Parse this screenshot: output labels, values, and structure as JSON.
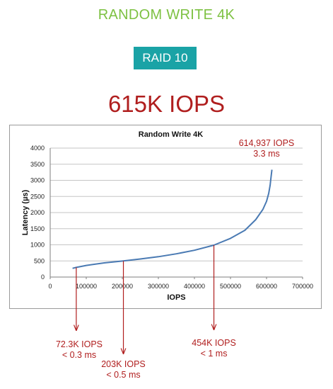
{
  "header": {
    "title": "RANDOM WRITE 4K",
    "badge": "RAID 10",
    "headline": "615K IOPS"
  },
  "colors": {
    "title_green": "#7dc142",
    "badge_teal": "#1aa3a6",
    "accent_red": "#b01e1e",
    "series_blue": "#4a7ab3",
    "grid": "#c6c6c6"
  },
  "chart_data": {
    "type": "line",
    "title": "Random Write 4K",
    "xlabel": "IOPS",
    "ylabel": "Latency (µs)",
    "xlim": [
      0,
      700000
    ],
    "ylim": [
      0,
      4000
    ],
    "x_ticks": [
      "0",
      "100000",
      "200000",
      "300000",
      "400000",
      "500000",
      "600000",
      "700000"
    ],
    "y_ticks": [
      "0",
      "500",
      "1000",
      "1500",
      "2000",
      "2500",
      "3000",
      "3500",
      "4000"
    ],
    "grid": "horizontal",
    "series": [
      {
        "x": [
          62000,
          72300,
          100000,
          150000,
          203000,
          250000,
          300000,
          350000,
          400000,
          454000,
          500000,
          540000,
          570000,
          590000,
          600000,
          606000,
          610000,
          612000,
          613500,
          614937
        ],
        "y": [
          270,
          300,
          360,
          440,
          500,
          560,
          630,
          720,
          830,
          990,
          1200,
          1450,
          1780,
          2100,
          2350,
          2600,
          2850,
          3050,
          3200,
          3330
        ]
      }
    ],
    "annotations": [
      {
        "id": "peak",
        "line1": "614,937 IOPS",
        "line2": "3.3 ms",
        "x": 614937,
        "y": 3330
      },
      {
        "id": "a1",
        "line1": "72.3K IOPS",
        "line2": "< 0.3 ms",
        "x": 72300,
        "y": 300
      },
      {
        "id": "a2",
        "line1": "203K IOPS",
        "line2": "< 0.5 ms",
        "x": 203000,
        "y": 500
      },
      {
        "id": "a3",
        "line1": "454K IOPS",
        "line2": "< 1 ms",
        "x": 454000,
        "y": 990
      }
    ]
  }
}
